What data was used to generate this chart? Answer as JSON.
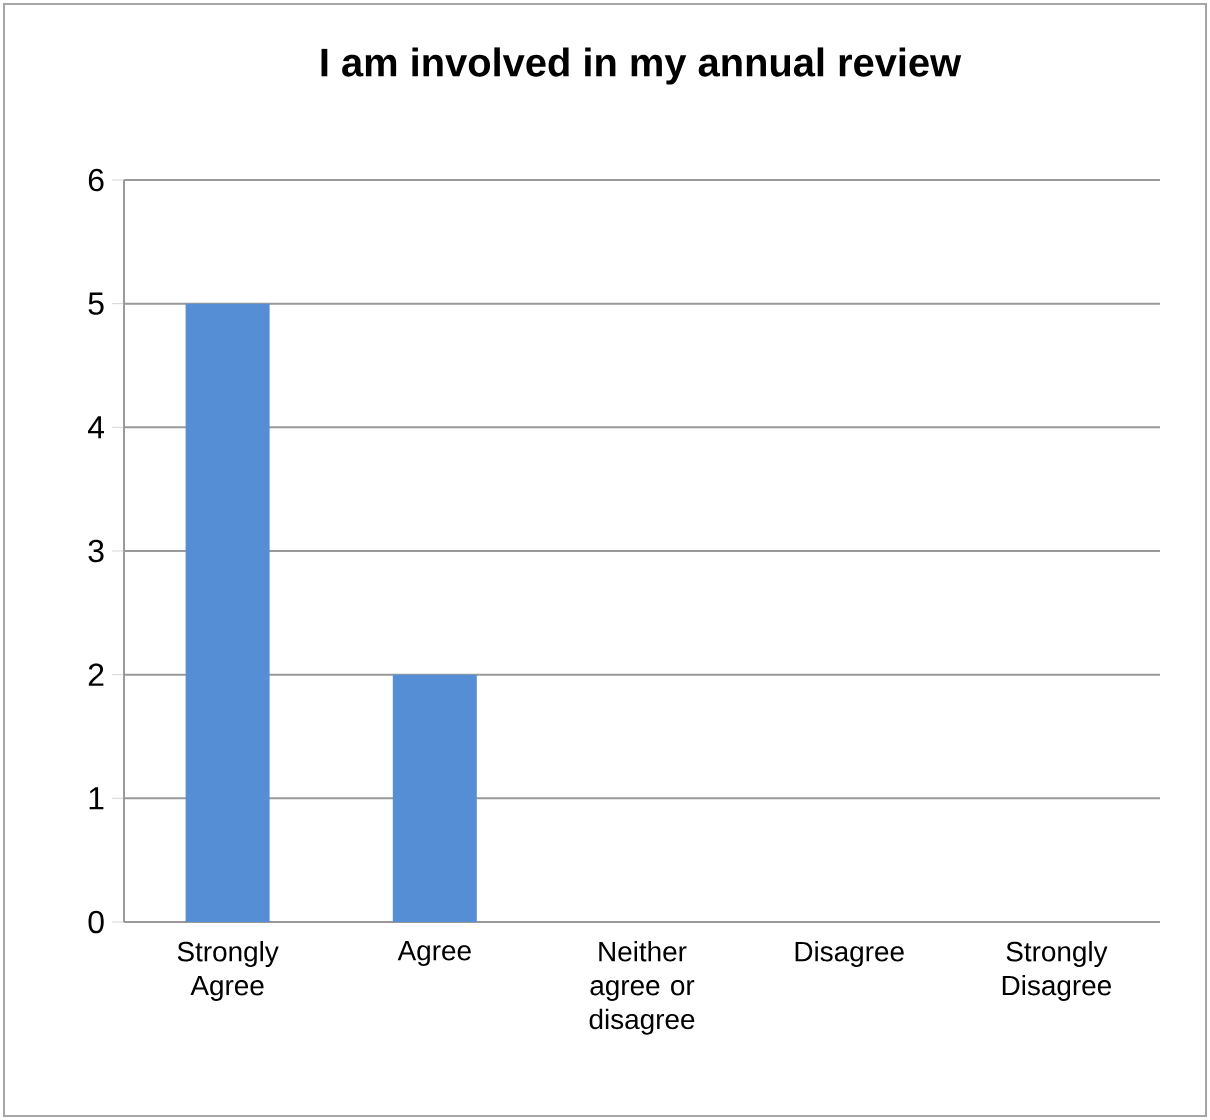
{
  "chart_data": {
    "type": "bar",
    "title": "I am involved in my annual review",
    "categories": [
      "Strongly Agree",
      "Agree",
      "Neither agree or disagree",
      "Disagree",
      "Strongly Disagree"
    ],
    "values": [
      5,
      2,
      0,
      0,
      0
    ],
    "color": "#558ed5",
    "ylim": [
      0,
      6
    ],
    "yticks": [
      0,
      1,
      2,
      3,
      4,
      5,
      6
    ],
    "grid": "y"
  }
}
